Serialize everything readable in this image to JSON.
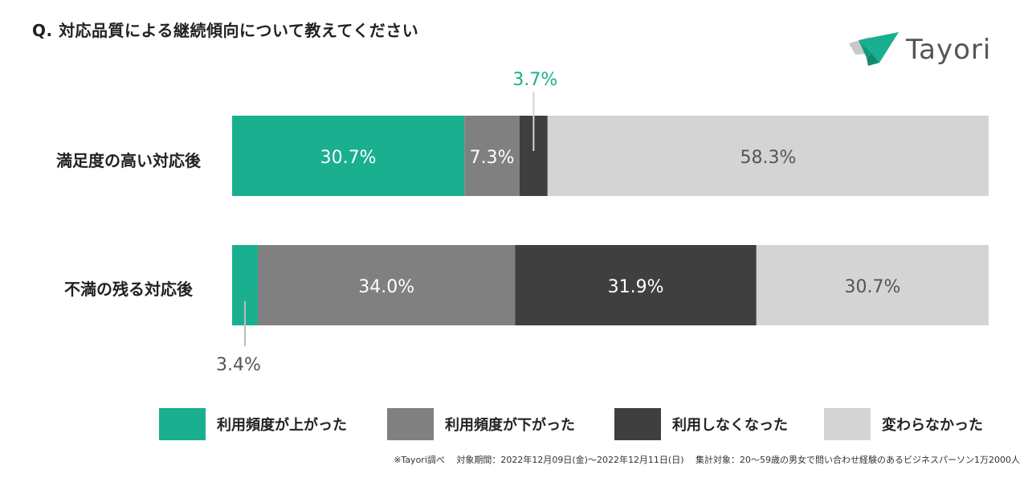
{
  "question": "Q. 対応品質による継続傾向について教えてください",
  "logo": {
    "text": "Tayori",
    "icon": "paper-plane-icon"
  },
  "colors": {
    "up": "#1aaf8f",
    "down": "#808080",
    "stopped": "#3f3f3f",
    "unchanged": "#d4d4d4",
    "accent_label": "#1aaf8f",
    "dark_label": "#555555"
  },
  "chart_data": {
    "type": "bar",
    "orientation": "horizontal",
    "stacked": true,
    "categories": [
      "満足度の高い対応後",
      "不満の残る対応後"
    ],
    "series": [
      {
        "name": "利用頻度が上がった",
        "values": [
          30.7,
          3.4
        ],
        "labels": [
          "30.7%",
          "3.4%"
        ]
      },
      {
        "name": "利用頻度が下がった",
        "values": [
          7.3,
          34.0
        ],
        "labels": [
          "7.3%",
          "34.0%"
        ]
      },
      {
        "name": "利用しなくなった",
        "values": [
          3.7,
          31.9
        ],
        "labels": [
          "3.7%",
          "31.9%"
        ]
      },
      {
        "name": "変わらなかった",
        "values": [
          58.3,
          30.7
        ],
        "labels": [
          "58.3%",
          "30.7%"
        ]
      }
    ],
    "xlim": [
      0,
      100
    ],
    "legend": "bottom"
  },
  "legend_labels": [
    "利用頻度が上がった",
    "利用頻度が下がった",
    "利用しなくなった",
    "変わらなかった"
  ],
  "footnote": "※Tayori調べ　 対象期間：2022年12月09日(金)～2022年12月11日(日)　 集計対象：20～59歳の男女で問い合わせ経験のあるビジネスパーソン1万2000人"
}
